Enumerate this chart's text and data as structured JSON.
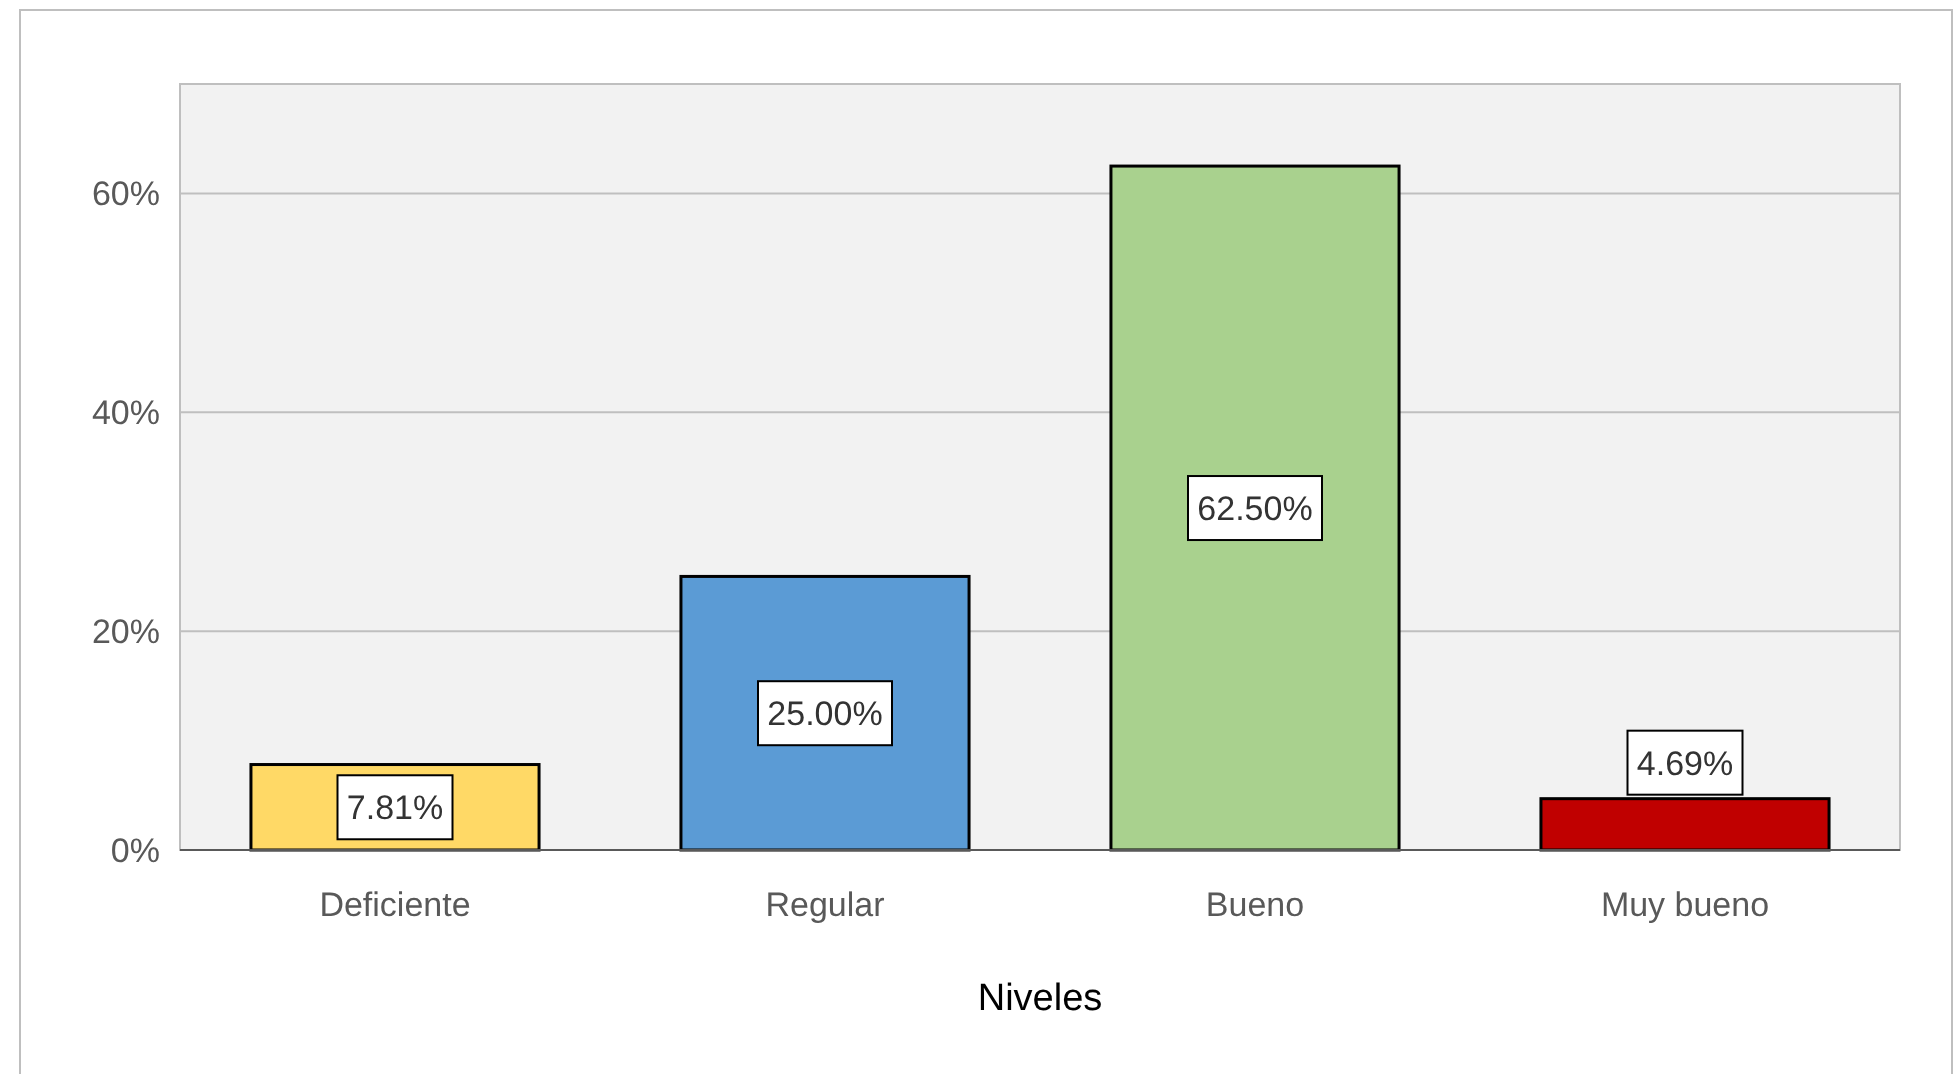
{
  "chart_data": {
    "type": "bar",
    "xlabel": "Niveles",
    "categories": [
      "Deficiente",
      "Regular",
      "Bueno",
      "Muy bueno"
    ],
    "values": [
      7.81,
      25.0,
      62.5,
      4.69
    ],
    "colors": [
      "#ffd966",
      "#5b9bd5",
      "#a9d18e",
      "#c00000"
    ],
    "value_labels": [
      "7.81%",
      "25.00%",
      "62.50%",
      "4.69%"
    ],
    "ylim": [
      0,
      70
    ],
    "yticks": [
      {
        "value": 0,
        "label": "0%"
      },
      {
        "value": 20,
        "label": "20%"
      },
      {
        "value": 40,
        "label": "40%"
      },
      {
        "value": 60,
        "label": "60%"
      }
    ],
    "grid": "y"
  }
}
